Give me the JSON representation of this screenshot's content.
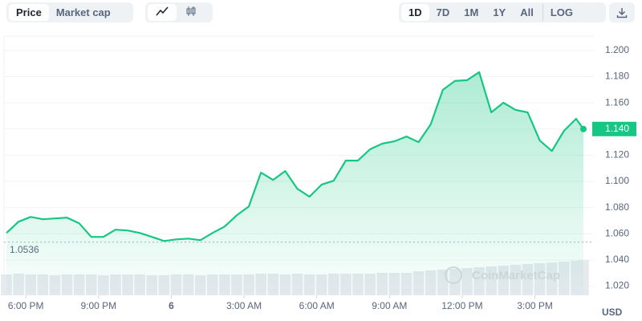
{
  "toolbar": {
    "tabs": [
      "Price",
      "Market cap"
    ],
    "ranges": [
      "1D",
      "7D",
      "1M",
      "1Y",
      "All"
    ],
    "scale": "LOG"
  },
  "chart_data": {
    "type": "area",
    "color": "#16c784",
    "grid": true,
    "x": [
      17.2,
      17.7,
      18.2,
      18.7,
      19.2,
      19.7,
      20.2,
      20.7,
      21.2,
      21.7,
      22.2,
      22.7,
      23.2,
      23.7,
      24.2,
      24.7,
      25.2,
      25.7,
      26.2,
      26.7,
      27.2,
      27.7,
      28.2,
      28.7,
      29.2,
      29.7,
      30.2,
      30.7,
      31.2,
      31.7,
      32.2,
      32.7,
      33.2,
      33.7,
      34.2,
      34.7,
      35.2,
      35.7,
      36.2,
      36.7,
      37.2,
      37.7,
      38.2,
      38.7,
      39.2,
      39.7,
      40.2,
      40.7,
      41.0
    ],
    "values": [
      1.0606,
      1.0692,
      1.0729,
      1.0711,
      1.0717,
      1.0723,
      1.068,
      1.0576,
      1.0576,
      1.0631,
      1.0625,
      1.0606,
      1.0576,
      1.0545,
      1.0557,
      1.0563,
      1.0551,
      1.0606,
      1.0655,
      1.0741,
      1.0809,
      1.1067,
      1.1011,
      1.1079,
      1.0944,
      1.0883,
      1.0975,
      1.1005,
      1.1159,
      1.1159,
      1.1245,
      1.1288,
      1.1306,
      1.1343,
      1.13,
      1.1435,
      1.1699,
      1.1767,
      1.1773,
      1.1834,
      1.1527,
      1.1601,
      1.1546,
      1.1527,
      1.1312,
      1.1232,
      1.1386,
      1.1478,
      1.14
    ],
    "volume": [
      26,
      27,
      26,
      26,
      25,
      26,
      26,
      26,
      25,
      26,
      26,
      26,
      25,
      25,
      26,
      26,
      25,
      26,
      26,
      26,
      26,
      27,
      27,
      26,
      27,
      26,
      26,
      27,
      27,
      27,
      27,
      28,
      28,
      28,
      30,
      31,
      32,
      33,
      34,
      35,
      36,
      37,
      38,
      39,
      40,
      41,
      42,
      43,
      44
    ],
    "volume_lim": [
      0,
      50
    ],
    "xlim": [
      17.1,
      41.1
    ],
    "xticks": [
      {
        "value": 18,
        "label": "6:00 PM"
      },
      {
        "value": 21,
        "label": "9:00 PM"
      },
      {
        "value": 24,
        "label": "6"
      },
      {
        "value": 27,
        "label": "3:00 AM"
      },
      {
        "value": 30,
        "label": "6:00 AM"
      },
      {
        "value": 33,
        "label": "9:00 AM"
      },
      {
        "value": 36,
        "label": "12:00 PM"
      },
      {
        "value": 39,
        "label": "3:00 PM"
      }
    ],
    "ylim": [
      1.013,
      1.214
    ],
    "yticks": [
      {
        "value": 1.02,
        "label": "1.020"
      },
      {
        "value": 1.04,
        "label": "1.040"
      },
      {
        "value": 1.06,
        "label": "1.060"
      },
      {
        "value": 1.08,
        "label": "1.080"
      },
      {
        "value": 1.1,
        "label": "1.100"
      },
      {
        "value": 1.12,
        "label": "1.120"
      },
      {
        "value": 1.14,
        "label": "1.140"
      },
      {
        "value": 1.16,
        "label": "1.160"
      },
      {
        "value": 1.18,
        "label": "1.180"
      },
      {
        "value": 1.2,
        "label": "1.200"
      }
    ],
    "reference": 1.0536,
    "current": {
      "value": 1.14,
      "label": "1.140"
    },
    "y_unit": "USD",
    "watermark": "CoinMarketCap"
  }
}
